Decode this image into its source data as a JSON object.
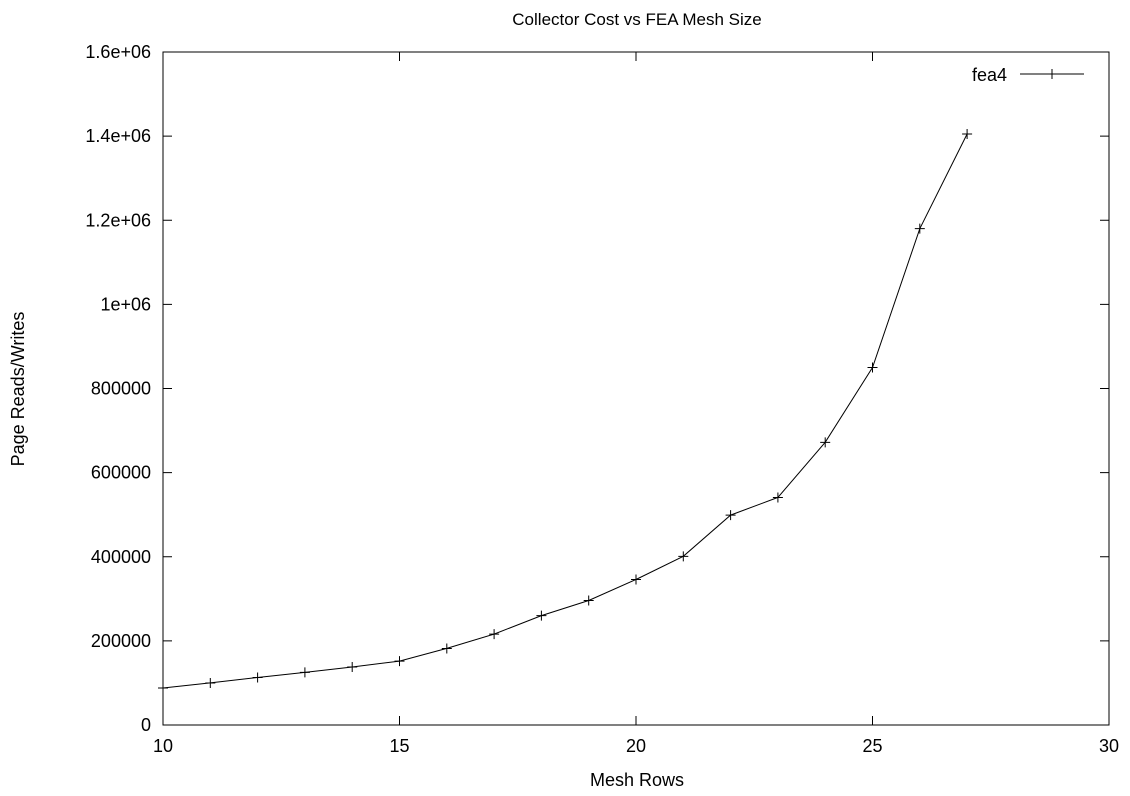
{
  "chart_data": {
    "type": "line",
    "title": "Collector Cost vs FEA Mesh Size",
    "xlabel": "Mesh Rows",
    "ylabel": "Page Reads/Writes",
    "xlim": [
      10,
      30
    ],
    "ylim": [
      0,
      1600000
    ],
    "xticks": [
      10,
      15,
      20,
      25,
      30
    ],
    "xtick_labels": [
      "10",
      "15",
      "20",
      "25",
      "30"
    ],
    "yticks": [
      0,
      200000,
      400000,
      600000,
      800000,
      1000000,
      1200000,
      1400000,
      1600000
    ],
    "ytick_labels": [
      "0",
      "200000",
      "400000",
      "600000",
      "800000",
      "1e+06",
      "1.2e+06",
      "1.4e+06",
      "1.6e+06"
    ],
    "grid": false,
    "legend_position": "top-right",
    "series": [
      {
        "name": "fea4",
        "marker": "plus",
        "color": "#000000",
        "x": [
          10,
          11,
          12,
          13,
          14,
          15,
          16,
          17,
          18,
          19,
          20,
          21,
          22,
          23,
          24,
          25,
          26,
          27
        ],
        "y": [
          88000,
          100000,
          113000,
          125000,
          138000,
          152000,
          182000,
          216000,
          260000,
          296000,
          346000,
          401000,
          499000,
          541000,
          672000,
          850000,
          1180000,
          1405000
        ]
      }
    ]
  }
}
